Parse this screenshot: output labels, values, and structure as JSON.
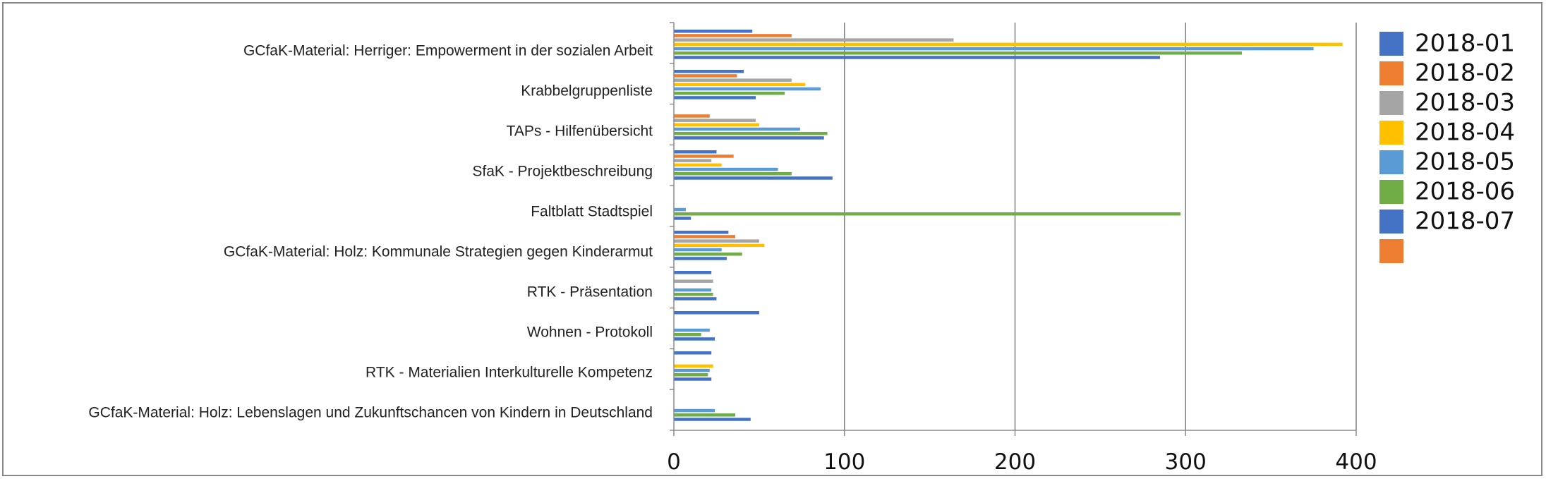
{
  "chart_data": {
    "type": "bar",
    "orientation": "horizontal",
    "title": "",
    "xlabel": "",
    "ylabel": "",
    "xlim": [
      0,
      400
    ],
    "xticks": [
      0,
      100,
      200,
      300,
      400
    ],
    "grid": "vertical",
    "legend_position": "right",
    "categories": [
      "GCfaK-Material: Herriger: Empowerment in der sozialen Arbeit",
      "Krabbelgruppenliste",
      "TAPs - Hilfenübersicht",
      "SfaK - Projektbeschreibung",
      "Faltblatt Stadtspiel",
      "GCfaK-Material: Holz: Kommunale Strategien gegen Kinderarmut",
      "RTK - Präsentation",
      "Wohnen - Protokoll",
      "RTK - Materialien Interkulturelle Kompetenz",
      "GCfaK-Material: Holz: Lebenslagen und Zukunftschancen von Kindern in Deutschland"
    ],
    "series": [
      {
        "name": "2018-01",
        "color": "#4472C4",
        "values": [
          46,
          41,
          0,
          25,
          0,
          32,
          22,
          50,
          22,
          0
        ]
      },
      {
        "name": "2018-02",
        "color": "#ED7D31",
        "values": [
          69,
          37,
          21,
          35,
          0,
          36,
          0,
          0,
          0,
          0
        ]
      },
      {
        "name": "2018-03",
        "color": "#A5A5A5",
        "values": [
          164,
          69,
          48,
          22,
          0,
          50,
          23,
          0,
          0,
          0
        ]
      },
      {
        "name": "2018-04",
        "color": "#FFC000",
        "values": [
          392,
          77,
          50,
          28,
          0,
          53,
          0,
          0,
          23,
          0
        ]
      },
      {
        "name": "2018-05",
        "color": "#5B9BD5",
        "values": [
          375,
          86,
          74,
          61,
          7,
          28,
          22,
          21,
          21,
          24
        ]
      },
      {
        "name": "2018-06",
        "color": "#70AD47",
        "values": [
          333,
          65,
          90,
          69,
          297,
          40,
          23,
          16,
          20,
          36
        ]
      },
      {
        "name": "2018-07",
        "color": "#4472C4",
        "values": [
          285,
          48,
          88,
          93,
          10,
          31,
          25,
          24,
          22,
          45
        ]
      },
      {
        "name": "",
        "color": "#ED7D31",
        "values": [
          0,
          0,
          0,
          0,
          0,
          0,
          0,
          0,
          0,
          0
        ]
      }
    ]
  }
}
